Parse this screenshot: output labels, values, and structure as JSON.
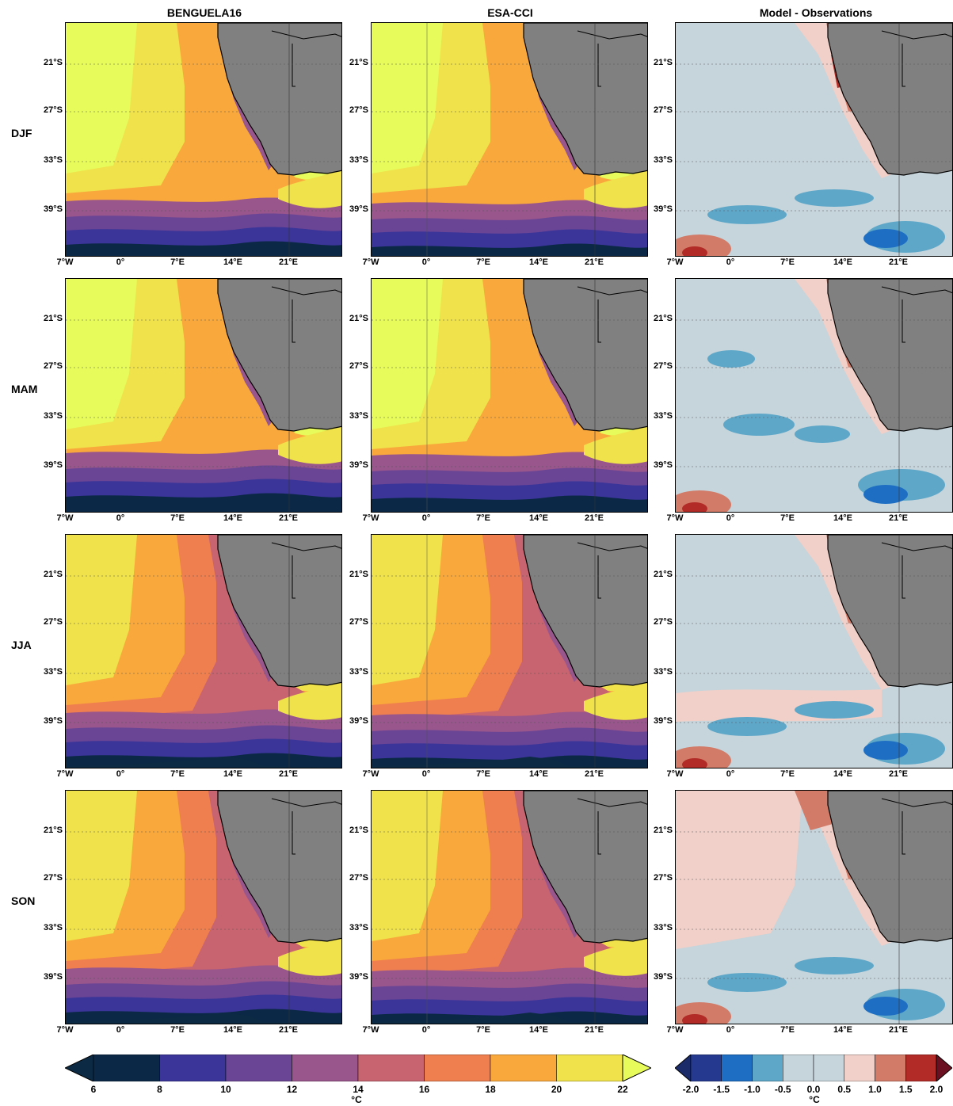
{
  "columns": [
    "BENGUELA16",
    "ESA-CCI",
    "Model - Observations"
  ],
  "rows": [
    "DJF",
    "MAM",
    "JJA",
    "SON"
  ],
  "lat_ticks": [
    "21°S",
    "27°S",
    "33°S",
    "39°S"
  ],
  "lon_ticks": [
    "7°W",
    "0°",
    "7°E",
    "14°E",
    "21°E"
  ],
  "sst_colorbar": {
    "ticks": [
      "6",
      "8",
      "10",
      "12",
      "14",
      "16",
      "18",
      "20",
      "22"
    ],
    "unit": "°C",
    "colors": [
      "#0d2a44",
      "#0b2946",
      "#3b3599",
      "#6a4595",
      "#98568c",
      "#c86370",
      "#ef7f4f",
      "#f9a83c",
      "#f0e24a",
      "#e7fb5a"
    ]
  },
  "diff_colorbar": {
    "ticks": [
      "-2.0",
      "-1.5",
      "-1.0",
      "-0.5",
      "0.0",
      "0.5",
      "1.0",
      "1.5",
      "2.0"
    ],
    "unit": "°C",
    "colors": [
      "#1b2b6a",
      "#253a8f",
      "#1e6fc4",
      "#5ea7c8",
      "#c6d4db",
      "#f0d0c8",
      "#d27b68",
      "#b22b26",
      "#6b1020"
    ]
  },
  "land_color": "#808080"
}
